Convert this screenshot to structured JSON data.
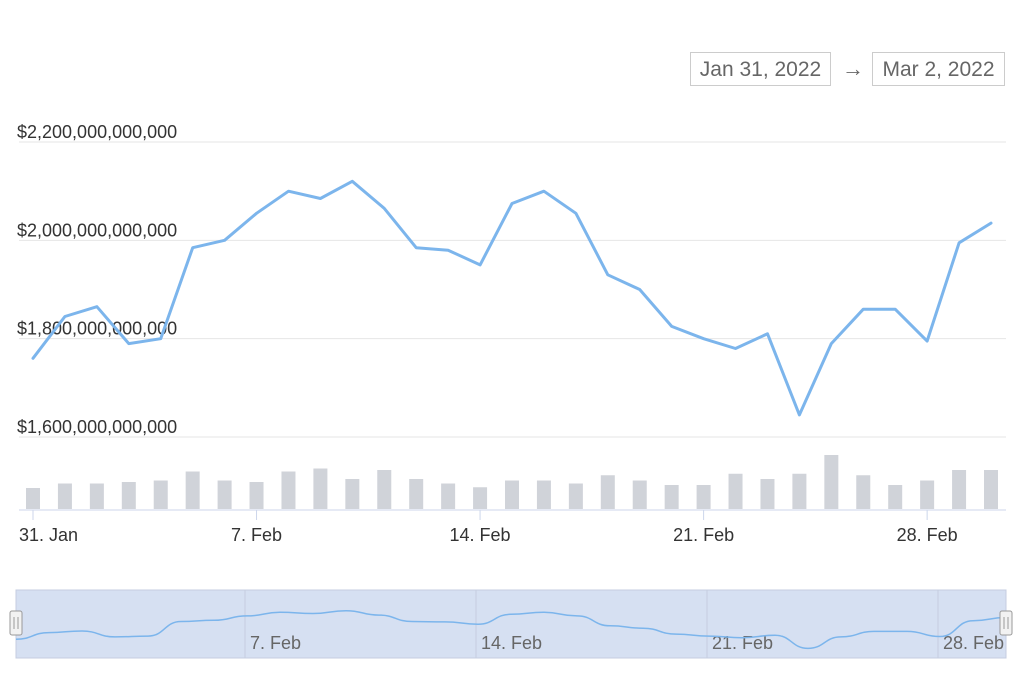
{
  "range_selector": {
    "from": "Jan 31, 2022",
    "arrow": "→",
    "to": "Mar 2, 2022"
  },
  "colors": {
    "line": "#7cb5ec",
    "volume_bar": "#d0d3d9",
    "grid": "#e6e6e6",
    "navigator_fill": "#d6e0f2",
    "navigator_border": "#c5cde0"
  },
  "chart_data": {
    "type": "line",
    "x": [
      "2022-01-31",
      "2022-02-01",
      "2022-02-02",
      "2022-02-03",
      "2022-02-04",
      "2022-02-05",
      "2022-02-06",
      "2022-02-07",
      "2022-02-08",
      "2022-02-09",
      "2022-02-10",
      "2022-02-11",
      "2022-02-12",
      "2022-02-13",
      "2022-02-14",
      "2022-02-15",
      "2022-02-16",
      "2022-02-17",
      "2022-02-18",
      "2022-02-19",
      "2022-02-20",
      "2022-02-21",
      "2022-02-22",
      "2022-02-23",
      "2022-02-24",
      "2022-02-25",
      "2022-02-26",
      "2022-02-27",
      "2022-02-28",
      "2022-03-01",
      "2022-03-02"
    ],
    "series": [
      {
        "values": [
          1760000000000,
          1845000000000,
          1865000000000,
          1790000000000,
          1800000000000,
          1985000000000,
          2000000000000,
          2055000000000,
          2100000000000,
          2085000000000,
          2120000000000,
          2065000000000,
          1985000000000,
          1980000000000,
          1950000000000,
          2075000000000,
          2100000000000,
          2055000000000,
          1930000000000,
          1900000000000,
          1825000000000,
          1800000000000,
          1780000000000,
          1810000000000,
          1645000000000,
          1790000000000,
          1860000000000,
          1860000000000,
          1795000000000,
          1995000000000,
          2035000000000
        ]
      }
    ],
    "volume_bars": [
      0.28,
      0.34,
      0.34,
      0.36,
      0.38,
      0.5,
      0.38,
      0.36,
      0.5,
      0.54,
      0.4,
      0.52,
      0.4,
      0.34,
      0.29,
      0.38,
      0.38,
      0.34,
      0.45,
      0.38,
      0.32,
      0.32,
      0.47,
      0.4,
      0.47,
      0.72,
      0.45,
      0.32,
      0.38,
      0.52,
      0.52
    ],
    "y_ticks": [
      "$1,600,000,000,000",
      "$1,800,000,000,000",
      "$2,000,000,000,000",
      "$2,200,000,000,000"
    ],
    "y_tick_values": [
      1600000000000,
      1800000000000,
      2000000000000,
      2200000000000
    ],
    "ylim": [
      1600000000000,
      2200000000000
    ],
    "x_ticks": [
      {
        "label": "31. Jan",
        "index": 0
      },
      {
        "label": "7. Feb",
        "index": 7
      },
      {
        "label": "14. Feb",
        "index": 14
      },
      {
        "label": "21. Feb",
        "index": 21
      },
      {
        "label": "28. Feb",
        "index": 28
      }
    ],
    "navigator_ticks": [
      {
        "label": "7. Feb",
        "index": 7
      },
      {
        "label": "14. Feb",
        "index": 14
      },
      {
        "label": "21. Feb",
        "index": 21
      },
      {
        "label": "28. Feb",
        "index": 28
      }
    ],
    "grid": true
  }
}
